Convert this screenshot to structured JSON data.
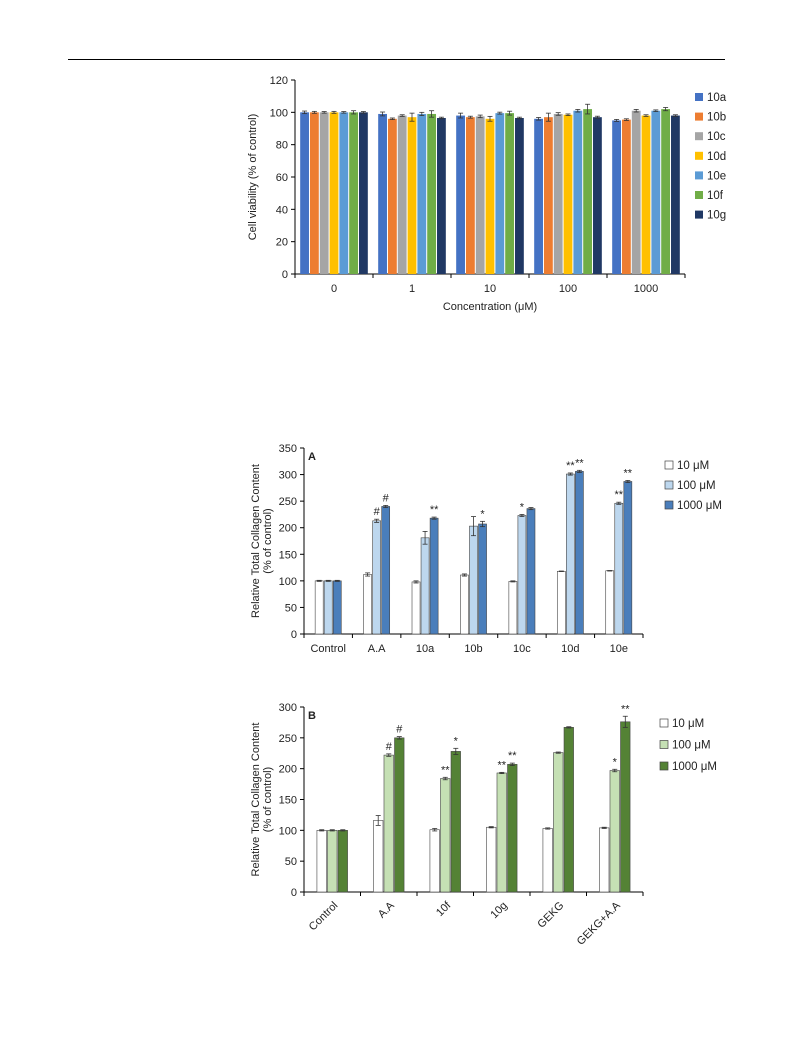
{
  "charts": [
    {
      "type": "bar",
      "ylabel": "Cell viability (% of control)",
      "xlabel": "Concentration (μM)",
      "ylim": [
        0,
        120
      ],
      "yticks": [
        0,
        20,
        40,
        60,
        80,
        100,
        120
      ],
      "categories": [
        "0",
        "1",
        "10",
        "100",
        "1000"
      ],
      "legend_position": "right",
      "series": [
        {
          "name": "10a",
          "color": "#4472C4",
          "values": [
            100,
            99,
            98,
            96,
            95
          ],
          "errors": [
            0.8,
            1.2,
            1.5,
            0.8,
            0.6
          ]
        },
        {
          "name": "10b",
          "color": "#ED7D31",
          "values": [
            100,
            96,
            97,
            97,
            95.5
          ],
          "errors": [
            0.6,
            0.5,
            0.6,
            2.5,
            0.5
          ]
        },
        {
          "name": "10c",
          "color": "#A5A5A5",
          "values": [
            100,
            98,
            97.5,
            99,
            101
          ],
          "errors": [
            0.5,
            0.5,
            0.8,
            0.8,
            0.8
          ]
        },
        {
          "name": "10d",
          "color": "#FFC000",
          "values": [
            100,
            97,
            96,
            98.5,
            98
          ],
          "errors": [
            0.6,
            2.5,
            1.5,
            0.5,
            0.5
          ]
        },
        {
          "name": "10e",
          "color": "#5B9BD5",
          "values": [
            100,
            99,
            99.5,
            101,
            101
          ],
          "errors": [
            0.5,
            1.0,
            0.6,
            0.8,
            0.5
          ]
        },
        {
          "name": "10f",
          "color": "#70AD47",
          "values": [
            100,
            99,
            99.5,
            102,
            102
          ],
          "errors": [
            1.0,
            2.0,
            1.2,
            3.0,
            1.0
          ]
        },
        {
          "name": "10g",
          "color": "#203864",
          "values": [
            100,
            96.5,
            96.5,
            97,
            98
          ],
          "errors": [
            0.5,
            0.5,
            0.5,
            0.6,
            0.5
          ]
        }
      ]
    },
    {
      "type": "bar",
      "panel_label": "A",
      "ylabel_lines": [
        "Relative Total Collagen Content",
        "(% of control)"
      ],
      "ylim": [
        0,
        350
      ],
      "yticks": [
        0,
        50,
        100,
        150,
        200,
        250,
        300,
        350
      ],
      "categories": [
        "Control",
        "A.A",
        "10a",
        "10b",
        "10c",
        "10d",
        "10e"
      ],
      "legend_position": "right",
      "series": [
        {
          "name": "10 μM",
          "color": "#FFFFFF",
          "values": [
            100,
            112,
            98,
            111,
            99,
            118,
            119
          ],
          "errors": [
            1,
            3,
            2,
            2,
            1,
            0.5,
            0.5
          ],
          "sig": [
            "",
            "",
            "",
            "",
            "",
            "",
            ""
          ]
        },
        {
          "name": "100 μM",
          "color": "#BDD7EE",
          "values": [
            100,
            213,
            181,
            203,
            223,
            301,
            246
          ],
          "errors": [
            1,
            3,
            12,
            18,
            2,
            2,
            2
          ],
          "sig": [
            "",
            "#",
            "",
            "",
            "*",
            "**",
            "**"
          ]
        },
        {
          "name": "1000 μM",
          "color": "#4A7EBB",
          "values": [
            100,
            240,
            218,
            207,
            236,
            306,
            287
          ],
          "errors": [
            1,
            2,
            2,
            5,
            2,
            2,
            2
          ],
          "sig": [
            "",
            "#",
            "**",
            "*",
            "",
            "**",
            "**"
          ]
        }
      ]
    },
    {
      "type": "bar",
      "panel_label": "B",
      "ylabel_lines": [
        "Relative Total Collagen Content",
        "(% of control)"
      ],
      "ylim": [
        0,
        300
      ],
      "yticks": [
        0,
        50,
        100,
        150,
        200,
        250,
        300
      ],
      "categories": [
        "Control",
        "A.A",
        "10f",
        "10g",
        "GEKG",
        "GEKG+A.A"
      ],
      "legend_position": "right",
      "series": [
        {
          "name": "10 μM",
          "color": "#FFFFFF",
          "values": [
            100,
            116,
            101,
            105,
            103,
            104
          ],
          "errors": [
            1,
            8,
            2,
            1,
            1,
            1
          ],
          "sig": [
            "",
            "",
            "",
            "",
            "",
            ""
          ]
        },
        {
          "name": "100 μM",
          "color": "#C5E0B4",
          "values": [
            100,
            222,
            184,
            193,
            226,
            197
          ],
          "errors": [
            1,
            2,
            2,
            1,
            1,
            2
          ],
          "sig": [
            "",
            "#",
            "**",
            "**",
            "",
            "*"
          ]
        },
        {
          "name": "1000 μM",
          "color": "#548235",
          "values": [
            100,
            250,
            228,
            207,
            267,
            276
          ],
          "errors": [
            1,
            2,
            5,
            2,
            1,
            9
          ],
          "sig": [
            "",
            "#",
            "*",
            "**",
            "",
            "**"
          ]
        }
      ]
    }
  ]
}
